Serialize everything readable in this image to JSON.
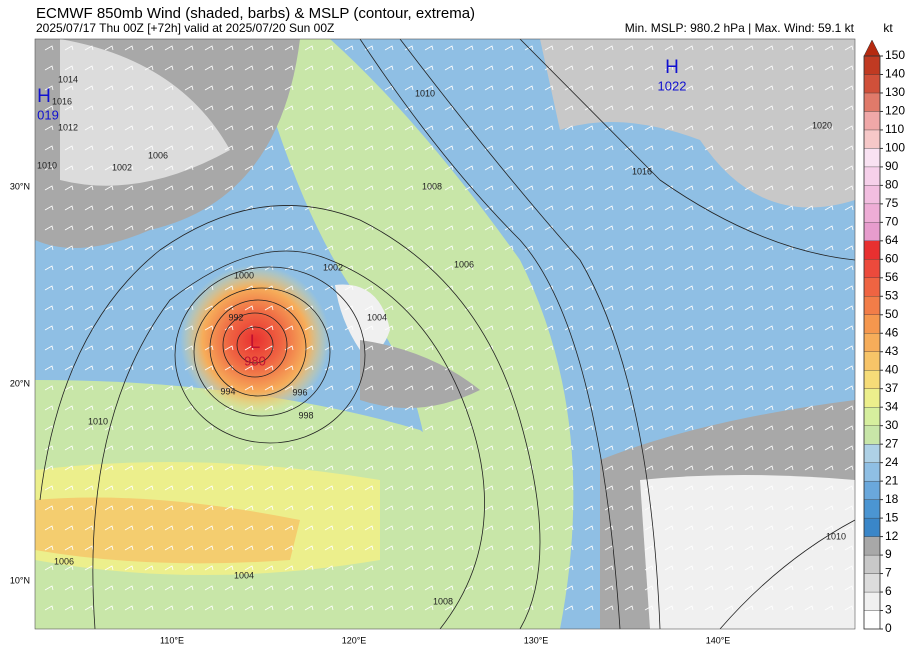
{
  "header": {
    "title": "ECMWF 850mb Wind (shaded, barbs) & MSLP (contour, extrema)",
    "subtitle": "2025/07/17 Thu 00Z [+72h] valid at 2025/07/20 Sun 00Z",
    "stats": "Min. MSLP: 980.2 hPa | Max. Wind: 59.1 kt"
  },
  "colorbar": {
    "unit": "kt",
    "ticks": [
      0,
      3,
      6,
      7,
      9,
      12,
      15,
      18,
      21,
      24,
      27,
      30,
      34,
      37,
      40,
      43,
      46,
      50,
      53,
      56,
      60,
      64,
      70,
      75,
      80,
      90,
      100,
      110,
      120,
      130,
      140,
      150
    ],
    "colors": [
      "#ffffff",
      "#f0f0f0",
      "#dcdcdc",
      "#c8c8c8",
      "#a8a8a8",
      "#3a86c8",
      "#4b95d2",
      "#6aa8dc",
      "#8fbfe4",
      "#aed1e6",
      "#c8e6a8",
      "#d6ef9e",
      "#ecef8c",
      "#f6dc78",
      "#f7c468",
      "#f6ad5a",
      "#f5974e",
      "#f27d48",
      "#ef6442",
      "#ec4a3c",
      "#e83030",
      "#e79ccd",
      "#eeadd6",
      "#f2bee0",
      "#f6d0ea",
      "#f9e2f2",
      "#f6c8c8",
      "#f0a8a8",
      "#e07a6a",
      "#d0503a",
      "#c03a22"
    ],
    "extend_color": "#b52a10"
  },
  "map": {
    "lat_labels": [
      "30°N",
      "20°N",
      "10°N"
    ],
    "lon_labels": [
      "110°E",
      "120°E",
      "130°E",
      "140°E"
    ],
    "extrema": [
      {
        "symbol": "H",
        "value": "019"
      },
      {
        "symbol": "H",
        "value": "1022"
      },
      {
        "symbol": "L",
        "value": "980"
      }
    ],
    "contour_labels": [
      "1014",
      "1016",
      "1012",
      "1010",
      "1002",
      "1006",
      "1000",
      "1002",
      "992",
      "994",
      "996",
      "998",
      "1004",
      "1006",
      "1008",
      "1010",
      "1016",
      "1020",
      "1010",
      "1004",
      "1006",
      "1008",
      "1010"
    ]
  }
}
